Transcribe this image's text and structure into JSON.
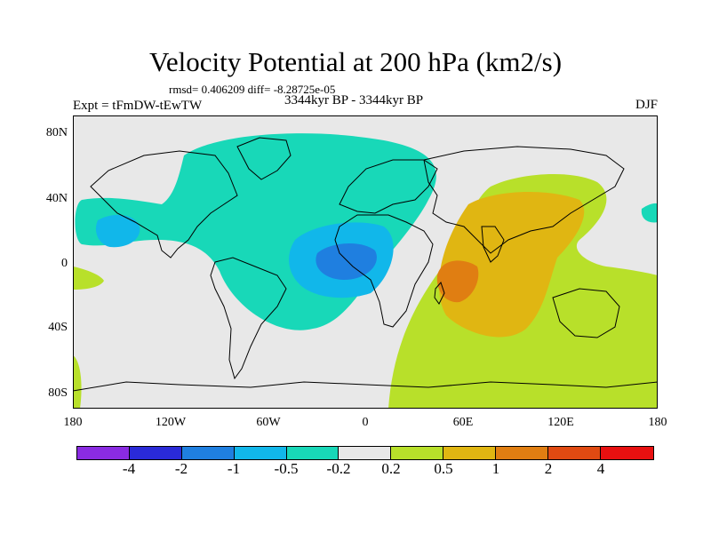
{
  "header": {
    "title": "Velocity Potential at 200 hPa (km2/s)",
    "stats": "rmsd= 0.406209 diff= -8.28725e-05",
    "expt": "Expt = tFmDW-tEwTW",
    "period": "3344kyr BP - 3344kyr BP",
    "season": "DJF"
  },
  "axes": {
    "y_ticks": [
      "80N",
      "40N",
      "0",
      "40S",
      "80S"
    ],
    "x_ticks": [
      "180",
      "120W",
      "60W",
      "0",
      "60E",
      "120E",
      "180"
    ]
  },
  "colorbar": {
    "colors": [
      "#8a2be2",
      "#2a2ad8",
      "#1f7fe0",
      "#11b7ea",
      "#18d8b8",
      "#e8e8e8",
      "#b8e02a",
      "#e0b612",
      "#e07e12",
      "#e04a12",
      "#e81010"
    ],
    "labels": [
      "-4",
      "-2",
      "-1",
      "-0.5",
      "-0.2",
      "0.2",
      "0.5",
      "1",
      "2",
      "4"
    ]
  },
  "legend_colors": {
    "neutral": "#e8e8e8",
    "neg_small": "#18d8b8",
    "neg_mid": "#11b7ea",
    "neg_large": "#1f7fe0",
    "pos_small": "#b8e02a",
    "pos_mid": "#e0b612",
    "pos_large": "#e07e12"
  }
}
